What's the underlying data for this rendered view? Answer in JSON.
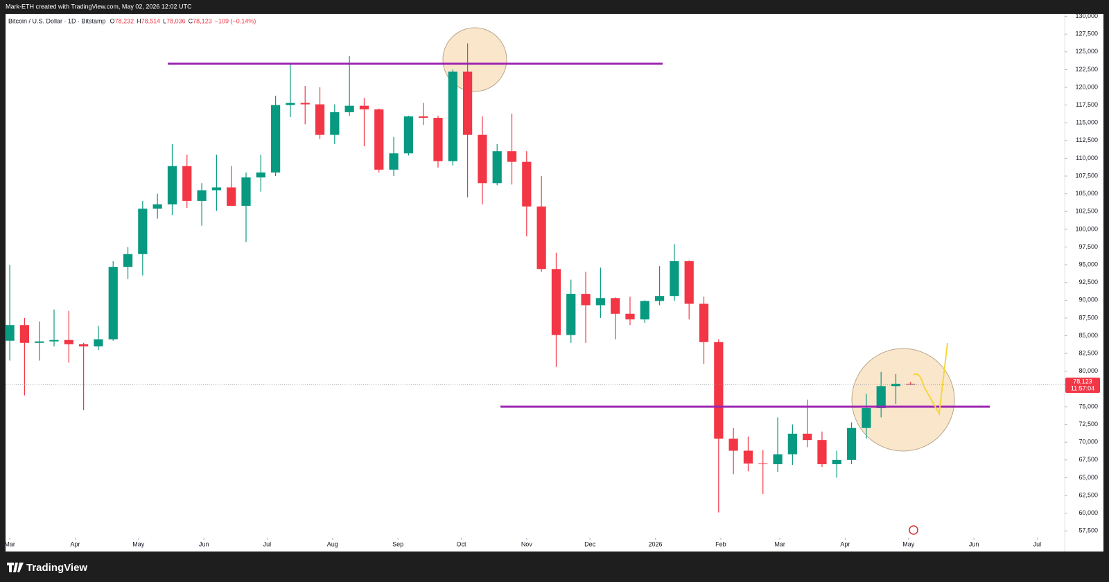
{
  "chart_data": {
    "type": "candlestick",
    "attribution": "Mark-ETH created with TradingView.com, May 02, 2026 12:02 UTC",
    "symbol": "Bitcoin / U.S. Dollar · 1D · Bitstamp",
    "ohlc_legend": [
      {
        "key": "O",
        "value": "78,232"
      },
      {
        "key": "H",
        "value": "78,514"
      },
      {
        "key": "L",
        "value": "78,036"
      },
      {
        "key": "C",
        "value": "78,123"
      }
    ],
    "change": "−109 (−0.14%)",
    "price_tag": {
      "price": "78,123",
      "countdown": "11:57:04"
    },
    "brand": "TradingView",
    "up_color": "#089981",
    "down_color": "#f23645",
    "grid": false,
    "x": [
      0,
      7,
      14,
      21,
      28,
      35,
      42,
      49,
      56,
      63,
      70,
      77,
      84,
      91,
      98,
      105,
      112,
      119,
      126,
      133,
      140,
      147,
      154,
      161,
      168,
      175,
      182,
      189,
      196,
      203,
      210,
      217,
      224,
      231,
      238,
      245,
      252,
      259,
      266,
      273,
      280,
      287,
      294,
      301,
      308,
      315,
      322,
      329,
      336,
      343,
      350,
      357,
      364,
      371,
      378,
      385,
      392,
      399,
      406,
      413,
      420,
      427
    ],
    "open": [
      84300,
      86500,
      84000,
      84200,
      84400,
      83800,
      83500,
      84500,
      94700,
      96500,
      102900,
      103500,
      108900,
      104000,
      105500,
      105900,
      103300,
      107300,
      108000,
      117500,
      117800,
      117600,
      113300,
      116500,
      117400,
      116900,
      108400,
      110700,
      115900,
      115700,
      109600,
      122200,
      113300,
      106500,
      111000,
      109500,
      103200,
      94400,
      85100,
      90900,
      89300,
      90300,
      88100,
      87300,
      89900,
      90600,
      95500,
      89500,
      84100,
      70500,
      68800,
      67000,
      66900,
      68300,
      71200,
      70300,
      66900,
      67500,
      72000,
      74800,
      77900,
      78232
    ],
    "high": [
      95000,
      87500,
      87000,
      88700,
      88500,
      84000,
      86400,
      95500,
      97500,
      104000,
      105000,
      112000,
      110500,
      106500,
      110500,
      108900,
      108000,
      110500,
      118800,
      123200,
      120200,
      120000,
      117600,
      124400,
      118500,
      117000,
      113000,
      116000,
      117800,
      116000,
      122500,
      126200,
      115900,
      112000,
      116300,
      111000,
      107500,
      96700,
      92900,
      94000,
      94600,
      90400,
      90500,
      90000,
      94800,
      97900,
      95600,
      90500,
      84500,
      72000,
      70800,
      68900,
      73500,
      72500,
      76000,
      71500,
      68800,
      72800,
      76800,
      79900,
      79600,
      78514
    ],
    "low": [
      81500,
      76600,
      81500,
      83500,
      81200,
      74500,
      83000,
      84300,
      93000,
      93500,
      101500,
      102000,
      103000,
      100500,
      102600,
      103300,
      98200,
      105300,
      107500,
      115800,
      114800,
      112700,
      112000,
      116000,
      111700,
      108000,
      107500,
      110400,
      114700,
      108700,
      109000,
      104500,
      103500,
      106200,
      106300,
      99000,
      94000,
      80600,
      84000,
      84000,
      87500,
      84500,
      86500,
      86800,
      89300,
      89900,
      87300,
      81000,
      60100,
      65500,
      65900,
      62700,
      65800,
      66800,
      69300,
      66500,
      65000,
      66900,
      70500,
      73500,
      75400,
      78036
    ],
    "close": [
      86500,
      84000,
      84200,
      84400,
      83800,
      83500,
      84500,
      94700,
      96500,
      102900,
      103500,
      108900,
      104000,
      105500,
      105900,
      103300,
      107300,
      108000,
      117500,
      117800,
      117600,
      113300,
      116500,
      117400,
      116900,
      108400,
      110700,
      115900,
      115700,
      109600,
      122200,
      113300,
      106500,
      111000,
      109500,
      103200,
      94400,
      85100,
      90900,
      89300,
      90300,
      88100,
      87300,
      89900,
      90600,
      95500,
      89500,
      84100,
      70500,
      68800,
      67000,
      66900,
      68300,
      71200,
      70300,
      66900,
      67500,
      72000,
      74800,
      77900,
      78232,
      78123
    ],
    "xlim": [
      -2,
      500
    ],
    "xticks": [
      {
        "value": 0,
        "label": "Mar"
      },
      {
        "value": 31,
        "label": "Apr"
      },
      {
        "value": 61,
        "label": "May"
      },
      {
        "value": 92,
        "label": "Jun"
      },
      {
        "value": 122,
        "label": "Jul"
      },
      {
        "value": 153,
        "label": "Aug"
      },
      {
        "value": 184,
        "label": "Sep"
      },
      {
        "value": 214,
        "label": "Oct"
      },
      {
        "value": 245,
        "label": "Nov"
      },
      {
        "value": 275,
        "label": "Dec"
      },
      {
        "value": 306,
        "label": "2026"
      },
      {
        "value": 337,
        "label": "Feb"
      },
      {
        "value": 365,
        "label": "Mar"
      },
      {
        "value": 396,
        "label": "Apr"
      },
      {
        "value": 426,
        "label": "May"
      },
      {
        "value": 457,
        "label": "Jun"
      },
      {
        "value": 487,
        "label": "Jul"
      }
    ],
    "ylim": [
      56550,
      130350
    ],
    "yticks": [
      {
        "value": 57500,
        "label": "57,500"
      },
      {
        "value": 60000,
        "label": "60,000"
      },
      {
        "value": 62500,
        "label": "62,500"
      },
      {
        "value": 65000,
        "label": "65,000"
      },
      {
        "value": 67500,
        "label": "67,500"
      },
      {
        "value": 70000,
        "label": "70,000"
      },
      {
        "value": 72500,
        "label": "72,500"
      },
      {
        "value": 75000,
        "label": "75,000"
      },
      {
        "value": 77500,
        "label": "77,500"
      },
      {
        "value": 80000,
        "label": "80,000"
      },
      {
        "value": 82500,
        "label": "82,500"
      },
      {
        "value": 85000,
        "label": "85,000"
      },
      {
        "value": 87500,
        "label": "87,500"
      },
      {
        "value": 90000,
        "label": "90,000"
      },
      {
        "value": 92500,
        "label": "92,500"
      },
      {
        "value": 95000,
        "label": "95,000"
      },
      {
        "value": 97500,
        "label": "97,500"
      },
      {
        "value": 100000,
        "label": "100,000"
      },
      {
        "value": 102500,
        "label": "102,500"
      },
      {
        "value": 105000,
        "label": "105,000"
      },
      {
        "value": 107500,
        "label": "107,500"
      },
      {
        "value": 110000,
        "label": "110,000"
      },
      {
        "value": 112500,
        "label": "112,500"
      },
      {
        "value": 115000,
        "label": "115,000"
      },
      {
        "value": 117500,
        "label": "117,500"
      },
      {
        "value": 120000,
        "label": "120,000"
      },
      {
        "value": 122500,
        "label": "122,500"
      },
      {
        "value": 125000,
        "label": "125,000"
      },
      {
        "value": 127500,
        "label": "127,500"
      },
      {
        "value": 130000,
        "label": "130,000"
      }
    ]
  }
}
